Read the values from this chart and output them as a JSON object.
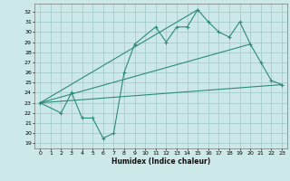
{
  "xlabel": "Humidex (Indice chaleur)",
  "bg_color": "#cce8e8",
  "line_color": "#2d8b78",
  "grid_color": "#a0c8c8",
  "x_ticks": [
    0,
    1,
    2,
    3,
    4,
    5,
    6,
    7,
    8,
    9,
    10,
    11,
    12,
    13,
    14,
    15,
    16,
    17,
    18,
    19,
    20,
    21,
    22,
    23
  ],
  "y_ticks": [
    19,
    20,
    21,
    22,
    23,
    24,
    25,
    26,
    27,
    28,
    29,
    30,
    31,
    32
  ],
  "xlim": [
    -0.5,
    23.5
  ],
  "ylim": [
    18.5,
    32.8
  ],
  "main_x": [
    0,
    2,
    3,
    4,
    5,
    6,
    7,
    8,
    9,
    11,
    12,
    13,
    14,
    15,
    16,
    17,
    18,
    19,
    20,
    21,
    22,
    23
  ],
  "main_y": [
    23,
    22,
    24,
    21.5,
    21.5,
    19.5,
    20,
    26,
    28.8,
    30.5,
    29,
    30.5,
    30.5,
    32.2,
    31,
    30,
    29.5,
    31,
    28.8,
    27,
    25.2,
    24.8
  ],
  "line1_x": [
    0,
    23
  ],
  "line1_y": [
    23.0,
    24.8
  ],
  "line2_x": [
    0,
    20
  ],
  "line2_y": [
    23.0,
    28.8
  ],
  "line3_x": [
    0,
    15
  ],
  "line3_y": [
    23.0,
    32.2
  ]
}
